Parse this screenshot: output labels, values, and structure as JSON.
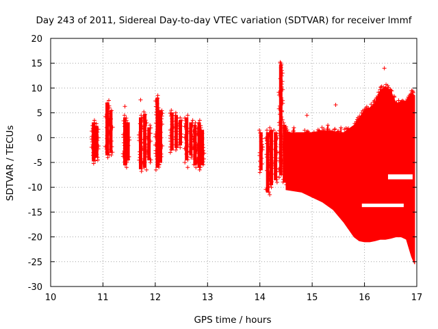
{
  "chart_data": {
    "type": "scatter",
    "title": "Day 243 of 2011, Sidereal Day-to-day VTEC variation (SDTVAR) for receiver lmmf",
    "xlabel": "GPS time / hours",
    "ylabel": "SDTVAR / TECUs",
    "xlim": [
      10,
      17
    ],
    "ylim": [
      -30,
      20
    ],
    "x_ticks": [
      10,
      11,
      12,
      13,
      14,
      15,
      16,
      17
    ],
    "y_ticks": [
      -30,
      -25,
      -20,
      -15,
      -10,
      -5,
      0,
      5,
      10,
      15,
      20
    ],
    "grid": true,
    "marker": "+",
    "series_color": "#ff0000",
    "vertical_clusters": [
      {
        "x": 10.82,
        "ymin": -5.2,
        "ymax": 3.5
      },
      {
        "x": 10.88,
        "ymin": -4.5,
        "ymax": 2.8
      },
      {
        "x": 11.08,
        "ymin": -4.0,
        "ymax": 7.5
      },
      {
        "x": 11.15,
        "ymin": -3.5,
        "ymax": 6.0
      },
      {
        "x": 11.42,
        "ymin": -6.0,
        "ymax": 4.5
      },
      {
        "x": 11.48,
        "ymin": -5.0,
        "ymax": 3.5
      },
      {
        "x": 11.72,
        "ymin": -6.8,
        "ymax": 4.5
      },
      {
        "x": 11.8,
        "ymin": -6.5,
        "ymax": 5.2
      },
      {
        "x": 11.88,
        "ymin": -5.0,
        "ymax": 2.5
      },
      {
        "x": 12.04,
        "ymin": -6.5,
        "ymax": 8.5
      },
      {
        "x": 12.1,
        "ymin": -5.5,
        "ymax": 6.0
      },
      {
        "x": 12.32,
        "ymin": -3.0,
        "ymax": 5.5
      },
      {
        "x": 12.4,
        "ymin": -2.5,
        "ymax": 5.0
      },
      {
        "x": 12.48,
        "ymin": -2.0,
        "ymax": 4.0
      },
      {
        "x": 12.6,
        "ymin": -5.0,
        "ymax": 4.5
      },
      {
        "x": 12.68,
        "ymin": -4.0,
        "ymax": 3.5
      },
      {
        "x": 12.76,
        "ymin": -6.0,
        "ymax": 3.0
      },
      {
        "x": 12.84,
        "ymin": -6.5,
        "ymax": 3.5
      },
      {
        "x": 12.9,
        "ymin": -6.0,
        "ymax": 2.0
      },
      {
        "x": 14.02,
        "ymin": -7.0,
        "ymax": 1.5
      },
      {
        "x": 14.15,
        "ymin": -11.5,
        "ymax": 1.5
      },
      {
        "x": 14.22,
        "ymin": -10.0,
        "ymax": 2.0
      },
      {
        "x": 14.3,
        "ymin": -9.0,
        "ymax": 1.5
      },
      {
        "x": 14.4,
        "ymin": -8.0,
        "ymax": 15.2
      },
      {
        "x": 14.47,
        "ymin": -9.5,
        "ymax": 3.0
      }
    ],
    "outliers": [
      {
        "x": 11.42,
        "y": 6.3
      },
      {
        "x": 11.72,
        "y": 7.6
      },
      {
        "x": 12.62,
        "y": -6.0
      },
      {
        "x": 14.4,
        "y": 15.0
      },
      {
        "x": 14.42,
        "y": 5.4
      },
      {
        "x": 14.9,
        "y": 4.5
      },
      {
        "x": 15.45,
        "y": 6.6
      },
      {
        "x": 16.38,
        "y": 14.0
      }
    ],
    "envelope": [
      {
        "x": 14.5,
        "upper": 1.0,
        "lower": -10.5
      },
      {
        "x": 14.8,
        "upper": 1.0,
        "lower": -11.0
      },
      {
        "x": 15.0,
        "upper": 1.0,
        "lower": -12.0
      },
      {
        "x": 15.2,
        "upper": 1.5,
        "lower": -13.0
      },
      {
        "x": 15.4,
        "upper": 1.2,
        "lower": -14.5
      },
      {
        "x": 15.6,
        "upper": 1.0,
        "lower": -17.0
      },
      {
        "x": 15.8,
        "upper": 2.5,
        "lower": -20.0
      },
      {
        "x": 15.9,
        "upper": 4.0,
        "lower": -20.8
      },
      {
        "x": 16.0,
        "upper": 5.5,
        "lower": -21.0
      },
      {
        "x": 16.1,
        "upper": 6.0,
        "lower": -21.0
      },
      {
        "x": 16.2,
        "upper": 7.0,
        "lower": -20.8
      },
      {
        "x": 16.3,
        "upper": 9.5,
        "lower": -20.5
      },
      {
        "x": 16.4,
        "upper": 10.3,
        "lower": -20.5
      },
      {
        "x": 16.5,
        "upper": 9.5,
        "lower": -20.3
      },
      {
        "x": 16.6,
        "upper": 7.0,
        "lower": -20.0
      },
      {
        "x": 16.7,
        "upper": 7.0,
        "lower": -20.0
      },
      {
        "x": 16.8,
        "upper": 7.5,
        "lower": -20.5
      },
      {
        "x": 16.9,
        "upper": 9.0,
        "lower": -24.0
      },
      {
        "x": 16.96,
        "upper": 8.5,
        "lower": -25.5
      }
    ],
    "envelope_gaps": [
      {
        "xmin": 15.95,
        "xmax": 16.75,
        "ymin": -14.0,
        "ymax": -13.3
      },
      {
        "xmin": 16.45,
        "xmax": 16.92,
        "ymin": -8.4,
        "ymax": -7.4
      }
    ],
    "envelope_bumps": [
      {
        "x": 14.5,
        "ymax": 2.2
      },
      {
        "x": 14.65,
        "ymax": 2.0
      },
      {
        "x": 15.3,
        "ymax": 2.5
      },
      {
        "x": 15.55,
        "ymax": 2.0
      },
      {
        "x": 15.7,
        "ymax": 1.5
      }
    ]
  }
}
